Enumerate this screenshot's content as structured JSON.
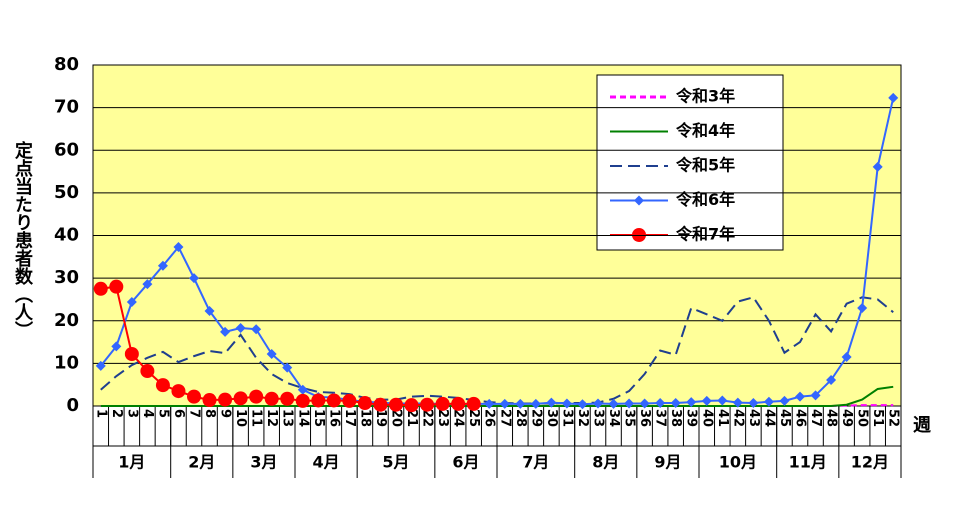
{
  "chart_data": {
    "type": "line",
    "y_label": "定点当たり患者数（人）",
    "x_label": "週",
    "categories": [
      "1",
      "2",
      "3",
      "4",
      "5",
      "6",
      "7",
      "8",
      "9",
      "10",
      "11",
      "12",
      "13",
      "14",
      "15",
      "16",
      "17",
      "18",
      "19",
      "20",
      "21",
      "22",
      "23",
      "24",
      "25",
      "26",
      "27",
      "28",
      "29",
      "30",
      "31",
      "32",
      "33",
      "34",
      "35",
      "36",
      "37",
      "38",
      "39",
      "40",
      "41",
      "42",
      "43",
      "44",
      "45",
      "46",
      "47",
      "48",
      "49",
      "50",
      "51",
      "52"
    ],
    "months": [
      {
        "label": "1月",
        "start": 1,
        "end": 5
      },
      {
        "label": "2月",
        "start": 6,
        "end": 9
      },
      {
        "label": "3月",
        "start": 10,
        "end": 13
      },
      {
        "label": "4月",
        "start": 14,
        "end": 17
      },
      {
        "label": "5月",
        "start": 18,
        "end": 22
      },
      {
        "label": "6月",
        "start": 23,
        "end": 26
      },
      {
        "label": "7月",
        "start": 27,
        "end": 31
      },
      {
        "label": "8月",
        "start": 32,
        "end": 35
      },
      {
        "label": "9月",
        "start": 36,
        "end": 39
      },
      {
        "label": "10月",
        "start": 40,
        "end": 44
      },
      {
        "label": "11月",
        "start": 45,
        "end": 48
      },
      {
        "label": "12月",
        "start": 49,
        "end": 52
      }
    ],
    "ylim": [
      0,
      80
    ],
    "yticks": [
      0,
      10,
      20,
      30,
      40,
      50,
      60,
      70,
      80
    ],
    "grid": true,
    "series": [
      {
        "name": "令和3年",
        "color": "#ff00ff",
        "dash": true,
        "marker": "none",
        "values": [
          0,
          0,
          0,
          0,
          0,
          0,
          0,
          0,
          0,
          0,
          0,
          0,
          0,
          0,
          0,
          0,
          0,
          0,
          0,
          0,
          0,
          0,
          0,
          0,
          0,
          0,
          0,
          0,
          0,
          0,
          0,
          0,
          0,
          0,
          0,
          0,
          0,
          0,
          0,
          0,
          0,
          0,
          0,
          0,
          0,
          0,
          0,
          0,
          0.1,
          0.2,
          0.2,
          0.2
        ]
      },
      {
        "name": "令和4年",
        "color": "#008000",
        "dash": false,
        "marker": "none",
        "values": [
          0,
          0,
          0,
          0,
          0,
          0,
          0,
          0,
          0,
          0,
          0,
          0,
          0,
          0,
          0,
          0,
          0,
          0,
          0,
          0,
          0,
          0,
          0,
          0,
          0,
          0,
          0,
          0,
          0,
          0,
          0,
          0,
          0,
          0,
          0,
          0,
          0,
          0,
          0,
          0,
          0,
          0,
          0,
          0,
          0,
          0,
          0,
          0,
          0.3,
          1.5,
          4,
          4.5
        ]
      },
      {
        "name": "令和5年",
        "color": "#1f3f8f",
        "dash": true,
        "marker": "none",
        "values": [
          3.8,
          7,
          9.6,
          11.3,
          12.7,
          10.3,
          11.7,
          12.9,
          12.4,
          16.7,
          11.3,
          7.5,
          5.4,
          4.2,
          3.3,
          3.1,
          2.8,
          1.9,
          1.5,
          1.5,
          2.2,
          2.4,
          2.2,
          1.9,
          1.4,
          0.9,
          0.7,
          0.6,
          0.6,
          0.6,
          0.7,
          0.7,
          0.8,
          1.7,
          3.5,
          7.5,
          13,
          12,
          23,
          21.5,
          20,
          24.5,
          25.5,
          20,
          12.5,
          15,
          21.5,
          17.5,
          24,
          25.5,
          25,
          22
        ]
      },
      {
        "name": "令和6年",
        "color": "#3366ff",
        "dash": false,
        "marker": "diamond",
        "values": [
          9.4,
          14,
          24.4,
          28.6,
          32.9,
          37.3,
          30,
          22.3,
          17.4,
          18.3,
          18,
          12.2,
          9,
          3.8,
          2.1,
          2,
          1.4,
          1,
          0.8,
          0.6,
          0.6,
          0.6,
          0.5,
          0.5,
          0.5,
          0.5,
          0.5,
          0.5,
          0.5,
          0.8,
          0.6,
          0.4,
          0.6,
          0.5,
          0.6,
          0.6,
          0.7,
          0.7,
          0.9,
          1.2,
          1.3,
          0.8,
          0.7,
          1,
          1.2,
          2.2,
          2.5,
          6.1,
          11.5,
          23,
          56.1,
          72.3
        ]
      },
      {
        "name": "令和7年",
        "color": "#ff0000",
        "dash": false,
        "marker": "circle",
        "values": [
          27.5,
          28,
          12.2,
          8.2,
          4.9,
          3.5,
          2.2,
          1.4,
          1.5,
          1.8,
          2.2,
          1.7,
          1.7,
          1.2,
          1.3,
          1.3,
          1.2,
          0.7,
          0.3,
          0.3,
          0.2,
          0.3,
          0.5,
          0.5,
          0.5,
          null,
          null,
          null,
          null,
          null,
          null,
          null,
          null,
          null,
          null,
          null,
          null,
          null,
          null,
          null,
          null,
          null,
          null,
          null,
          null,
          null,
          null,
          null,
          null,
          null,
          null,
          null
        ]
      }
    ]
  }
}
